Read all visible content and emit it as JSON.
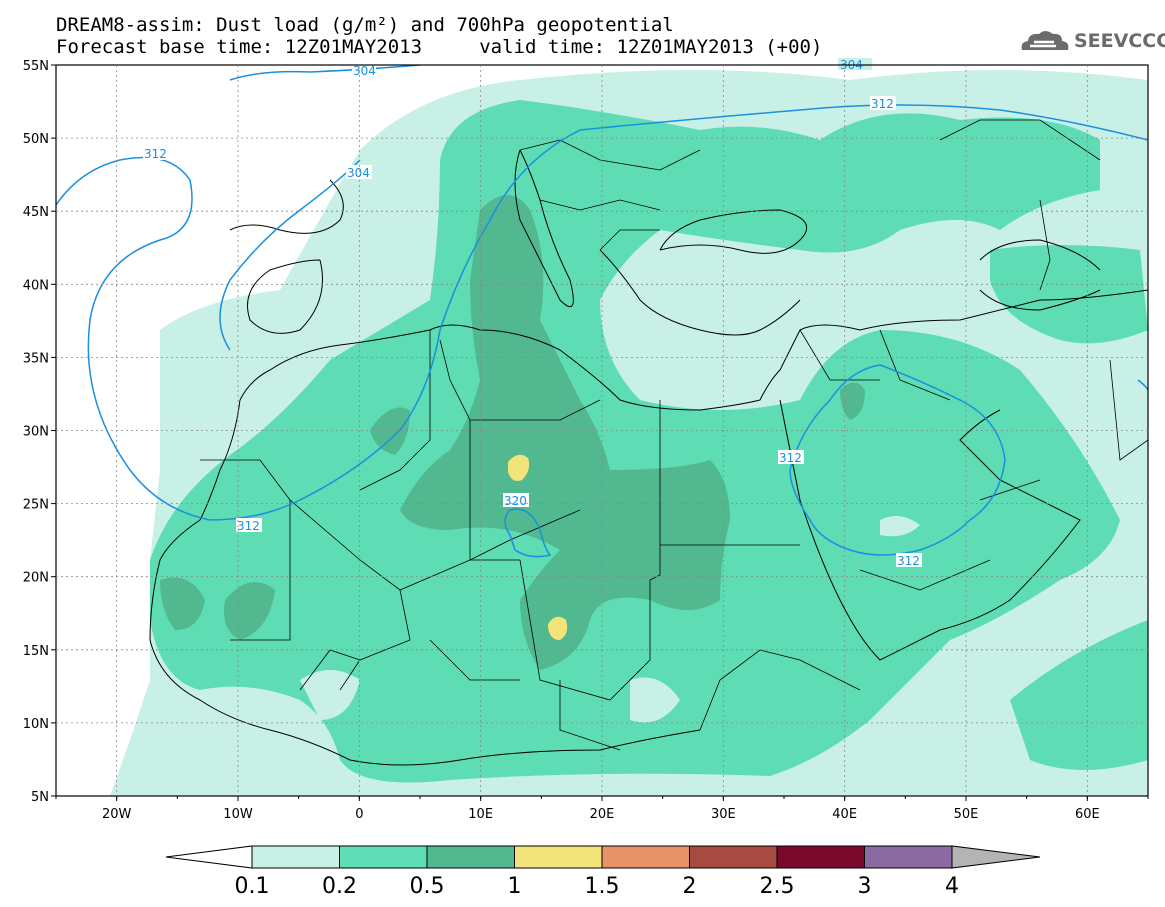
{
  "title_line1": "DREAM8-assim: Dust load (g/m²) and 700hPa geopotential",
  "title_line2": "Forecast base time: 12Z01MAY2013     valid time: 12Z01MAY2013 (+00)",
  "logo": {
    "icon": "cloud-icon",
    "text": "SEEVCCC"
  },
  "lat_labels": [
    "55N",
    "50N",
    "45N",
    "40N",
    "35N",
    "30N",
    "25N",
    "20N",
    "15N",
    "10N",
    "5N"
  ],
  "lon_labels": [
    "20W",
    "10W",
    "0",
    "10E",
    "20E",
    "30E",
    "40E",
    "50E",
    "60E"
  ],
  "contour_labels": [
    "304",
    "312",
    "304",
    "312",
    "312",
    "320",
    "312",
    "312",
    "304"
  ],
  "colorbar": {
    "ticks": [
      "0.1",
      "0.2",
      "0.5",
      "1",
      "1.5",
      "2",
      "2.5",
      "3",
      "4"
    ],
    "colors": [
      "#c8f0e6",
      "#5edcb4",
      "#52b890",
      "#f2e47a",
      "#e9936a",
      "#a64a42",
      "#7a0a2c",
      "#8a6aa0",
      "#b4b4b4"
    ]
  },
  "colors": {
    "ocean": "#ffffff",
    "light": "#c8f0e6",
    "mid": "#5edcb4",
    "dark": "#52b890",
    "yellow": "#f2e47a",
    "contour": "#1a8fe0"
  }
}
